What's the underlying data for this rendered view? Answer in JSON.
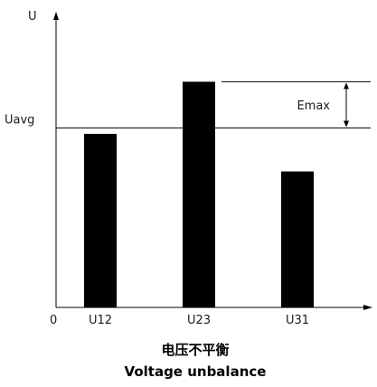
{
  "chart_data": {
    "type": "bar",
    "title_zh": "电压不平衡",
    "title_en": "Voltage unbalance",
    "ylabel": "U",
    "origin_label": "0",
    "categories": [
      "U12",
      "U23",
      "U31"
    ],
    "values": [
      60,
      78,
      47
    ],
    "ylim": [
      0,
      100
    ],
    "reference_line": {
      "label": "Uavg",
      "value": 62
    },
    "annotation": {
      "label": "Emax",
      "from": 62,
      "to": 78
    },
    "grid": false,
    "colors": {
      "bar": "#000000",
      "axis": "#000000"
    }
  }
}
